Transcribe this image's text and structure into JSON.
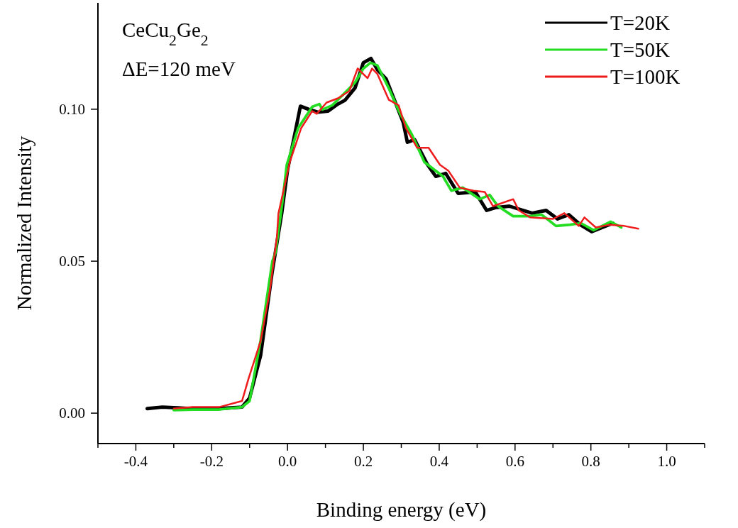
{
  "chart_data": {
    "type": "line",
    "xlabel": "Binding energy (eV)",
    "ylabel": "Normalized Intensity",
    "annotations": [
      "CeCu$_{2}$Ge$_{2}$",
      "ΔE=120 meV"
    ],
    "xlim": [
      -0.5,
      1.1
    ],
    "ylim": [
      -0.01,
      0.135
    ],
    "xticks": [
      {
        "value": -0.5,
        "label": null
      },
      -0.4,
      {
        "value": -0.3,
        "label": null
      },
      -0.2,
      {
        "value": -0.1,
        "label": null
      },
      {
        "value": 0,
        "label": "0.0"
      },
      {
        "value": 0.1,
        "label": null
      },
      0.2,
      {
        "value": 0.3,
        "label": null
      },
      0.4,
      {
        "value": 0.5,
        "label": null
      },
      0.6,
      {
        "value": 0.7,
        "label": null
      },
      0.8,
      {
        "value": 0.9,
        "label": null
      },
      {
        "value": 1,
        "label": "1.0"
      },
      {
        "value": 1.1,
        "label": null
      }
    ],
    "yticks": [
      {
        "value": 0,
        "label": "0.00"
      },
      {
        "value": 0.05,
        "label": "0.05"
      },
      {
        "value": 0.1,
        "label": "0.10"
      }
    ],
    "grid": false,
    "legend": "top right",
    "marker": "none",
    "line_style": "solid",
    "series": [
      {
        "name": "T=20K",
        "color": "#000000",
        "x": [
          -0.37,
          -0.33,
          -0.25,
          -0.18,
          -0.12,
          -0.1,
          -0.071,
          -0.041,
          -0.015,
          0.0,
          0.034,
          0.055,
          0.08,
          0.107,
          0.133,
          0.152,
          0.178,
          0.2,
          0.22,
          0.237,
          0.26,
          0.282,
          0.305,
          0.316,
          0.335,
          0.368,
          0.391,
          0.417,
          0.45,
          0.495,
          0.525,
          0.548,
          0.585,
          0.645,
          0.682,
          0.712,
          0.742,
          0.772,
          0.802,
          0.858
        ],
        "values": [
          0.0015,
          0.002,
          0.0015,
          0.0015,
          0.002,
          0.005,
          0.019,
          0.046,
          0.066,
          0.08,
          0.101,
          0.1,
          0.099,
          0.0994,
          0.1017,
          0.103,
          0.107,
          0.1153,
          0.1167,
          0.113,
          0.11,
          0.103,
          0.0957,
          0.0891,
          0.09,
          0.082,
          0.0779,
          0.0789,
          0.0723,
          0.0728,
          0.0667,
          0.0676,
          0.0681,
          0.0658,
          0.0667,
          0.0639,
          0.0653,
          0.062,
          0.0597,
          0.0625
        ]
      },
      {
        "name": "T=50K",
        "color": "#22dd22",
        "x": [
          -0.3,
          -0.25,
          -0.18,
          -0.12,
          -0.1,
          -0.071,
          -0.04,
          -0.032,
          -0.015,
          -0.002,
          0.028,
          0.065,
          0.084,
          0.092,
          0.118,
          0.148,
          0.178,
          0.2,
          0.219,
          0.237,
          0.267,
          0.297,
          0.327,
          0.361,
          0.41,
          0.432,
          0.462,
          0.507,
          0.533,
          0.555,
          0.595,
          0.64,
          0.67,
          0.708,
          0.745,
          0.774,
          0.807,
          0.852,
          0.88
        ],
        "values": [
          0.001,
          0.0012,
          0.0012,
          0.002,
          0.004,
          0.024,
          0.05,
          0.0527,
          0.068,
          0.0817,
          0.0938,
          0.1008,
          0.1017,
          0.0999,
          0.1013,
          0.105,
          0.1088,
          0.1134,
          0.1153,
          0.1144,
          0.1069,
          0.0985,
          0.0919,
          0.0826,
          0.0779,
          0.0732,
          0.0742,
          0.0704,
          0.0718,
          0.0681,
          0.0648,
          0.0648,
          0.0653,
          0.0616,
          0.062,
          0.0625,
          0.0602,
          0.063,
          0.0611
        ]
      },
      {
        "name": "T=100K",
        "color": "#ee1c1c",
        "x": [
          -0.3,
          -0.25,
          -0.18,
          -0.12,
          -0.103,
          -0.071,
          -0.047,
          -0.028,
          -0.024,
          0.006,
          0.036,
          0.065,
          0.077,
          0.103,
          0.133,
          0.163,
          0.185,
          0.211,
          0.223,
          0.237,
          0.267,
          0.293,
          0.312,
          0.342,
          0.372,
          0.402,
          0.424,
          0.454,
          0.491,
          0.52,
          0.542,
          0.595,
          0.61,
          0.64,
          0.7,
          0.73,
          0.768,
          0.783,
          0.813,
          0.85,
          0.888,
          0.925
        ],
        "values": [
          0.0015,
          0.002,
          0.002,
          0.004,
          0.0113,
          0.0237,
          0.04,
          0.058,
          0.0657,
          0.0826,
          0.0938,
          0.0994,
          0.0985,
          0.1022,
          0.1036,
          0.106,
          0.1134,
          0.1102,
          0.1134,
          0.1116,
          0.1031,
          0.1013,
          0.0938,
          0.0873,
          0.0873,
          0.0817,
          0.0798,
          0.0742,
          0.0732,
          0.0728,
          0.0681,
          0.0704,
          0.0667,
          0.0644,
          0.0639,
          0.0658,
          0.0616,
          0.0644,
          0.0611,
          0.062,
          0.0616,
          0.0607
        ]
      }
    ]
  }
}
